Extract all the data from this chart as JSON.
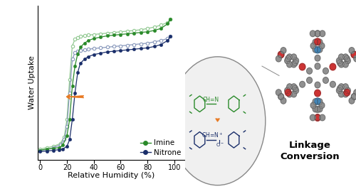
{
  "imine_adsorption_x": [
    0,
    5,
    10,
    14,
    17,
    20,
    22,
    24,
    26,
    28,
    30,
    33,
    36,
    40,
    45,
    50,
    55,
    60,
    65,
    70,
    75,
    80,
    85,
    90,
    95,
    97
  ],
  "imine_adsorption_y": [
    0.02,
    0.03,
    0.035,
    0.04,
    0.06,
    0.13,
    0.25,
    0.5,
    0.65,
    0.74,
    0.79,
    0.82,
    0.84,
    0.855,
    0.865,
    0.875,
    0.88,
    0.885,
    0.89,
    0.895,
    0.9,
    0.905,
    0.915,
    0.93,
    0.965,
    1.0
  ],
  "imine_desorption_x": [
    97,
    95,
    90,
    85,
    80,
    75,
    70,
    65,
    60,
    55,
    50,
    45,
    40,
    36,
    33,
    30,
    28,
    26,
    24,
    22,
    20,
    18,
    15,
    10,
    5,
    0
  ],
  "imine_desorption_y": [
    1.0,
    0.975,
    0.955,
    0.94,
    0.93,
    0.92,
    0.915,
    0.91,
    0.905,
    0.9,
    0.895,
    0.89,
    0.885,
    0.88,
    0.875,
    0.87,
    0.86,
    0.85,
    0.8,
    0.55,
    0.25,
    0.12,
    0.07,
    0.05,
    0.04,
    0.03
  ],
  "nitrone_adsorption_x": [
    0,
    5,
    10,
    14,
    17,
    20,
    22,
    24,
    26,
    28,
    30,
    33,
    36,
    40,
    45,
    50,
    55,
    60,
    65,
    70,
    75,
    80,
    85,
    90,
    95,
    97
  ],
  "nitrone_adsorption_y": [
    0.01,
    0.015,
    0.02,
    0.025,
    0.03,
    0.05,
    0.1,
    0.25,
    0.45,
    0.6,
    0.67,
    0.7,
    0.72,
    0.735,
    0.745,
    0.755,
    0.76,
    0.765,
    0.77,
    0.775,
    0.78,
    0.785,
    0.795,
    0.81,
    0.84,
    0.87
  ],
  "nitrone_desorption_x": [
    97,
    95,
    90,
    85,
    80,
    75,
    70,
    65,
    60,
    55,
    50,
    45,
    40,
    36,
    33,
    30,
    28,
    26,
    24,
    22,
    20,
    18,
    15,
    10,
    5,
    0
  ],
  "nitrone_desorption_y": [
    0.87,
    0.855,
    0.84,
    0.83,
    0.82,
    0.815,
    0.81,
    0.805,
    0.8,
    0.795,
    0.79,
    0.785,
    0.78,
    0.775,
    0.77,
    0.765,
    0.76,
    0.75,
    0.7,
    0.45,
    0.2,
    0.1,
    0.06,
    0.04,
    0.025,
    0.02
  ],
  "imine_color": "#2a8a2a",
  "imine_desorption_color": "#90c890",
  "nitrone_color": "#1a2e6a",
  "nitrone_desorption_color": "#8898bb",
  "arrow_color": "#e87820",
  "xlabel": "Relative Humidity (%)",
  "ylabel": "Water Uptake",
  "xticks": [
    0,
    20,
    40,
    60,
    80,
    100
  ],
  "xlim": [
    -2,
    108
  ],
  "ylim": [
    -0.05,
    1.1
  ],
  "linkage_text": "Linkage\nConversion",
  "legend_imine": "Imine",
  "legend_nitrone": "Nitrone",
  "mol_grey": "#909090",
  "mol_red": "#cc3333",
  "mol_blue": "#4488bb",
  "mol_white": "#dddddd"
}
